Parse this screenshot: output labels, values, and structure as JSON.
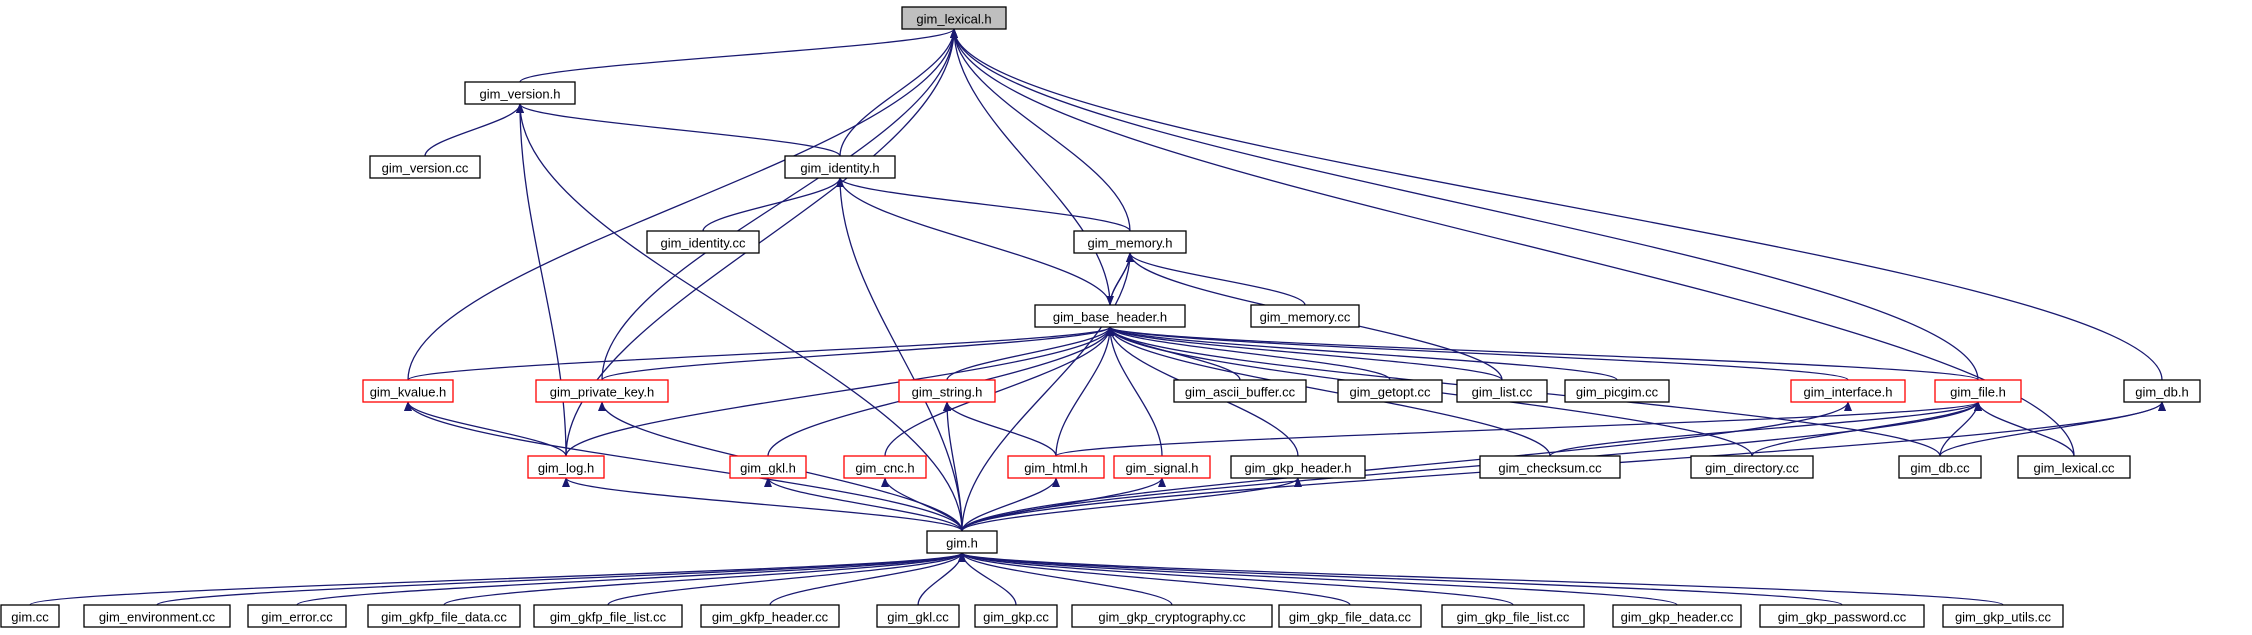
{
  "graph": {
    "title": "gim_lexical.h",
    "colors": {
      "edge": "#191970",
      "normal_border": "#000000",
      "truncated_border": "#ff0000",
      "root_fill": "#bfbfbf"
    },
    "nodes": [
      {
        "id": "lexical_h",
        "label": "gim_lexical.h",
        "style": "root"
      },
      {
        "id": "version_h",
        "label": "gim_version.h",
        "style": "black"
      },
      {
        "id": "version_cc",
        "label": "gim_version.cc",
        "style": "black"
      },
      {
        "id": "identity_h",
        "label": "gim_identity.h",
        "style": "black"
      },
      {
        "id": "identity_cc",
        "label": "gim_identity.cc",
        "style": "black"
      },
      {
        "id": "memory_h",
        "label": "gim_memory.h",
        "style": "black"
      },
      {
        "id": "memory_cc",
        "label": "gim_memory.cc",
        "style": "black"
      },
      {
        "id": "base_header_h",
        "label": "gim_base_header.h",
        "style": "black"
      },
      {
        "id": "kvalue_h",
        "label": "gim_kvalue.h",
        "style": "red"
      },
      {
        "id": "private_key_h",
        "label": "gim_private_key.h",
        "style": "red"
      },
      {
        "id": "string_h",
        "label": "gim_string.h",
        "style": "red"
      },
      {
        "id": "ascii_buffer_cc",
        "label": "gim_ascii_buffer.cc",
        "style": "black"
      },
      {
        "id": "getopt_cc",
        "label": "gim_getopt.cc",
        "style": "black"
      },
      {
        "id": "list_cc",
        "label": "gim_list.cc",
        "style": "black"
      },
      {
        "id": "picgim_cc",
        "label": "gim_picgim.cc",
        "style": "black"
      },
      {
        "id": "interface_h",
        "label": "gim_interface.h",
        "style": "red"
      },
      {
        "id": "file_h",
        "label": "gim_file.h",
        "style": "red"
      },
      {
        "id": "db_h",
        "label": "gim_db.h",
        "style": "black"
      },
      {
        "id": "log_h",
        "label": "gim_log.h",
        "style": "red"
      },
      {
        "id": "gkl_h",
        "label": "gim_gkl.h",
        "style": "red"
      },
      {
        "id": "cnc_h",
        "label": "gim_cnc.h",
        "style": "red"
      },
      {
        "id": "html_h",
        "label": "gim_html.h",
        "style": "red"
      },
      {
        "id": "signal_h",
        "label": "gim_signal.h",
        "style": "red"
      },
      {
        "id": "gkp_header_h",
        "label": "gim_gkp_header.h",
        "style": "black"
      },
      {
        "id": "checksum_cc",
        "label": "gim_checksum.cc",
        "style": "black"
      },
      {
        "id": "directory_cc",
        "label": "gim_directory.cc",
        "style": "black"
      },
      {
        "id": "db_cc",
        "label": "gim_db.cc",
        "style": "black"
      },
      {
        "id": "lexical_cc",
        "label": "gim_lexical.cc",
        "style": "black"
      },
      {
        "id": "gim_h",
        "label": "gim.h",
        "style": "black"
      },
      {
        "id": "gim_cc",
        "label": "gim.cc",
        "style": "black"
      },
      {
        "id": "environment_cc",
        "label": "gim_environment.cc",
        "style": "black"
      },
      {
        "id": "error_cc",
        "label": "gim_error.cc",
        "style": "black"
      },
      {
        "id": "gkfp_file_data_cc",
        "label": "gim_gkfp_file_data.cc",
        "style": "black"
      },
      {
        "id": "gkfp_file_list_cc",
        "label": "gim_gkfp_file_list.cc",
        "style": "black"
      },
      {
        "id": "gkfp_header_cc",
        "label": "gim_gkfp_header.cc",
        "style": "black"
      },
      {
        "id": "gkl_cc",
        "label": "gim_gkl.cc",
        "style": "black"
      },
      {
        "id": "gkp_cc",
        "label": "gim_gkp.cc",
        "style": "black"
      },
      {
        "id": "gkp_cryptography_cc",
        "label": "gim_gkp_cryptography.cc",
        "style": "black"
      },
      {
        "id": "gkp_file_data_cc",
        "label": "gim_gkp_file_data.cc",
        "style": "black"
      },
      {
        "id": "gkp_file_list_cc",
        "label": "gim_gkp_file_list.cc",
        "style": "black"
      },
      {
        "id": "gkp_header_cc",
        "label": "gim_gkp_header.cc",
        "style": "black"
      },
      {
        "id": "gkp_password_cc",
        "label": "gim_gkp_password.cc",
        "style": "black"
      },
      {
        "id": "gkp_utils_cc",
        "label": "gim_gkp_utils.cc",
        "style": "black"
      }
    ],
    "edges": [
      {
        "from": "version_h",
        "to": "lexical_h"
      },
      {
        "from": "identity_h",
        "to": "lexical_h"
      },
      {
        "from": "memory_h",
        "to": "lexical_h"
      },
      {
        "from": "base_header_h",
        "to": "lexical_h"
      },
      {
        "from": "kvalue_h",
        "to": "lexical_h"
      },
      {
        "from": "log_h",
        "to": "lexical_h"
      },
      {
        "from": "private_key_h",
        "to": "lexical_h"
      },
      {
        "from": "file_h",
        "to": "lexical_h"
      },
      {
        "from": "db_h",
        "to": "lexical_h"
      },
      {
        "from": "lexical_cc",
        "to": "lexical_h"
      },
      {
        "from": "version_cc",
        "to": "version_h"
      },
      {
        "from": "identity_h",
        "to": "version_h"
      },
      {
        "from": "log_h",
        "to": "version_h"
      },
      {
        "from": "gim_h",
        "to": "version_h"
      },
      {
        "from": "identity_cc",
        "to": "identity_h"
      },
      {
        "from": "memory_h",
        "to": "identity_h"
      },
      {
        "from": "base_header_h",
        "to": "identity_h"
      },
      {
        "from": "gim_h",
        "to": "identity_h"
      },
      {
        "from": "base_header_h",
        "to": "memory_h"
      },
      {
        "from": "memory_cc",
        "to": "memory_h"
      },
      {
        "from": "list_cc",
        "to": "memory_h"
      },
      {
        "from": "gim_h",
        "to": "memory_h"
      },
      {
        "from": "memory_h",
        "to": "base_header_h"
      },
      {
        "from": "kvalue_h",
        "to": "base_header_h"
      },
      {
        "from": "private_key_h",
        "to": "base_header_h"
      },
      {
        "from": "log_h",
        "to": "base_header_h"
      },
      {
        "from": "string_h",
        "to": "base_header_h"
      },
      {
        "from": "gkl_h",
        "to": "base_header_h"
      },
      {
        "from": "cnc_h",
        "to": "base_header_h"
      },
      {
        "from": "html_h",
        "to": "base_header_h"
      },
      {
        "from": "signal_h",
        "to": "base_header_h"
      },
      {
        "from": "gkp_header_h",
        "to": "base_header_h"
      },
      {
        "from": "ascii_buffer_cc",
        "to": "base_header_h"
      },
      {
        "from": "getopt_cc",
        "to": "base_header_h"
      },
      {
        "from": "list_cc",
        "to": "base_header_h"
      },
      {
        "from": "picgim_cc",
        "to": "base_header_h"
      },
      {
        "from": "interface_h",
        "to": "base_header_h"
      },
      {
        "from": "file_h",
        "to": "base_header_h"
      },
      {
        "from": "checksum_cc",
        "to": "base_header_h"
      },
      {
        "from": "directory_cc",
        "to": "base_header_h"
      },
      {
        "from": "db_cc",
        "to": "base_header_h"
      },
      {
        "from": "log_h",
        "to": "kvalue_h"
      },
      {
        "from": "gim_h",
        "to": "kvalue_h"
      },
      {
        "from": "gim_h",
        "to": "private_key_h"
      },
      {
        "from": "html_h",
        "to": "string_h"
      },
      {
        "from": "gim_h",
        "to": "string_h"
      },
      {
        "from": "gim_h",
        "to": "log_h"
      },
      {
        "from": "gim_h",
        "to": "gkl_h"
      },
      {
        "from": "gim_h",
        "to": "cnc_h"
      },
      {
        "from": "gim_h",
        "to": "html_h"
      },
      {
        "from": "gim_h",
        "to": "signal_h"
      },
      {
        "from": "gim_h",
        "to": "gkp_header_h"
      },
      {
        "from": "gim_h",
        "to": "interface_h"
      },
      {
        "from": "html_h",
        "to": "file_h"
      },
      {
        "from": "checksum_cc",
        "to": "file_h"
      },
      {
        "from": "directory_cc",
        "to": "file_h"
      },
      {
        "from": "db_cc",
        "to": "file_h"
      },
      {
        "from": "lexical_cc",
        "to": "file_h"
      },
      {
        "from": "gim_h",
        "to": "file_h"
      },
      {
        "from": "db_cc",
        "to": "db_h"
      },
      {
        "from": "gim_h",
        "to": "db_h"
      },
      {
        "from": "gim_cc",
        "to": "gim_h"
      },
      {
        "from": "environment_cc",
        "to": "gim_h"
      },
      {
        "from": "error_cc",
        "to": "gim_h"
      },
      {
        "from": "gkfp_file_data_cc",
        "to": "gim_h"
      },
      {
        "from": "gkfp_file_list_cc",
        "to": "gim_h"
      },
      {
        "from": "gkfp_header_cc",
        "to": "gim_h"
      },
      {
        "from": "gkl_cc",
        "to": "gim_h"
      },
      {
        "from": "gkp_cc",
        "to": "gim_h"
      },
      {
        "from": "gkp_cryptography_cc",
        "to": "gim_h"
      },
      {
        "from": "gkp_file_data_cc",
        "to": "gim_h"
      },
      {
        "from": "gkp_file_list_cc",
        "to": "gim_h"
      },
      {
        "from": "gkp_header_cc",
        "to": "gim_h"
      },
      {
        "from": "gkp_password_cc",
        "to": "gim_h"
      },
      {
        "from": "gkp_utils_cc",
        "to": "gim_h"
      }
    ]
  }
}
